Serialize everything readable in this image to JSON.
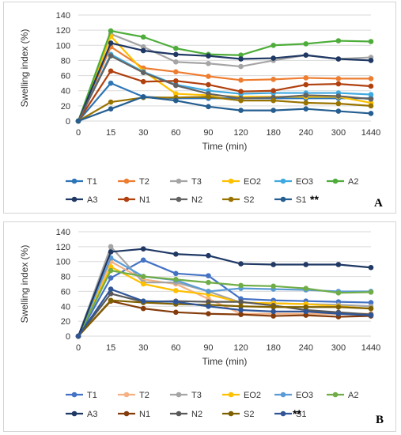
{
  "chart_data": [
    {
      "panel": "A",
      "type": "line",
      "categories": [
        "0",
        "15",
        "30",
        "60",
        "90",
        "120",
        "180",
        "240",
        "300",
        "1440"
      ],
      "xlabel": "Time (min)",
      "ylabel": "Swelling index (%)",
      "ylim": [
        0,
        140
      ],
      "yticks": [
        0,
        20,
        40,
        60,
        80,
        100,
        120,
        140
      ],
      "grid": true,
      "legend_position": "bottom",
      "annotation": "**",
      "series": [
        {
          "name": "T1",
          "color": "#2e75b6",
          "values": [
            0,
            50,
            32,
            30,
            30,
            30,
            30,
            30,
            30,
            30
          ]
        },
        {
          "name": "T2",
          "color": "#ed7d31",
          "values": [
            0,
            98,
            70,
            65,
            59,
            54,
            55,
            57,
            56,
            56
          ]
        },
        {
          "name": "T3",
          "color": "#a5a5a5",
          "values": [
            0,
            115,
            98,
            78,
            76,
            72,
            80,
            87,
            82,
            84
          ]
        },
        {
          "name": "EO2",
          "color": "#ffc000",
          "values": [
            0,
            112,
            66,
            36,
            34,
            32,
            32,
            32,
            32,
            24
          ]
        },
        {
          "name": "EO3",
          "color": "#3fa9e0",
          "values": [
            0,
            88,
            65,
            48,
            40,
            36,
            37,
            37,
            37,
            35
          ]
        },
        {
          "name": "A2",
          "color": "#4ead3a",
          "values": [
            0,
            119,
            111,
            96,
            88,
            87,
            100,
            102,
            106,
            105
          ]
        },
        {
          "name": "A3",
          "color": "#1f3864",
          "values": [
            0,
            103,
            93,
            88,
            86,
            82,
            83,
            87,
            82,
            80
          ]
        },
        {
          "name": "N1",
          "color": "#b0410f",
          "values": [
            0,
            66,
            52,
            53,
            48,
            39,
            40,
            48,
            49,
            46
          ]
        },
        {
          "name": "N2",
          "color": "#636363",
          "values": [
            0,
            86,
            64,
            47,
            36,
            30,
            31,
            34,
            33,
            29
          ]
        },
        {
          "name": "S2",
          "color": "#997300",
          "values": [
            0,
            25,
            31,
            31,
            32,
            27,
            27,
            24,
            23,
            20
          ]
        },
        {
          "name": "S1",
          "color": "#255e91",
          "values": [
            0,
            16,
            32,
            27,
            19,
            14,
            14,
            16,
            13,
            10
          ]
        }
      ],
      "panel_label": "A"
    },
    {
      "panel": "B",
      "type": "line",
      "categories": [
        "0",
        "15",
        "30",
        "60",
        "90",
        "120",
        "180",
        "240",
        "300",
        "1440"
      ],
      "xlabel": "Time (min)",
      "ylabel": "Swelling index (%)",
      "ylim": [
        0,
        140
      ],
      "yticks": [
        0,
        20,
        40,
        60,
        80,
        100,
        120,
        140
      ],
      "grid": true,
      "legend_position": "bottom",
      "annotation": "**",
      "series": [
        {
          "name": "T1",
          "color": "#4472c4",
          "values": [
            0,
            78,
            102,
            84,
            81,
            50,
            48,
            47,
            46,
            45
          ]
        },
        {
          "name": "T2",
          "color": "#f4b183",
          "values": [
            0,
            100,
            76,
            70,
            50,
            30,
            30,
            30,
            30,
            30
          ]
        },
        {
          "name": "T3",
          "color": "#a5a5a5",
          "values": [
            0,
            120,
            72,
            72,
            60,
            45,
            44,
            43,
            42,
            40
          ]
        },
        {
          "name": "EO2",
          "color": "#ffc000",
          "values": [
            0,
            93,
            70,
            61,
            56,
            45,
            44,
            43,
            40,
            37
          ]
        },
        {
          "name": "EO3",
          "color": "#5b9bd5",
          "values": [
            0,
            105,
            80,
            75,
            60,
            64,
            63,
            62,
            60,
            60
          ]
        },
        {
          "name": "A2",
          "color": "#70ad47",
          "values": [
            0,
            88,
            80,
            76,
            72,
            68,
            67,
            64,
            58,
            59
          ]
        },
        {
          "name": "A3",
          "color": "#1f3864",
          "values": [
            0,
            113,
            117,
            110,
            108,
            97,
            96,
            96,
            96,
            92
          ]
        },
        {
          "name": "N1",
          "color": "#843c0c",
          "values": [
            0,
            47,
            37,
            32,
            30,
            29,
            27,
            28,
            26,
            27
          ]
        },
        {
          "name": "N2",
          "color": "#595959",
          "values": [
            0,
            57,
            46,
            47,
            46,
            46,
            41,
            35,
            32,
            29
          ]
        },
        {
          "name": "S2",
          "color": "#7f6000",
          "values": [
            0,
            48,
            45,
            43,
            42,
            40,
            39,
            39,
            39,
            37
          ]
        },
        {
          "name": "S1",
          "color": "#2f5597",
          "values": [
            0,
            63,
            47,
            46,
            40,
            35,
            33,
            33,
            30,
            28
          ]
        }
      ],
      "panel_label": "B"
    }
  ]
}
